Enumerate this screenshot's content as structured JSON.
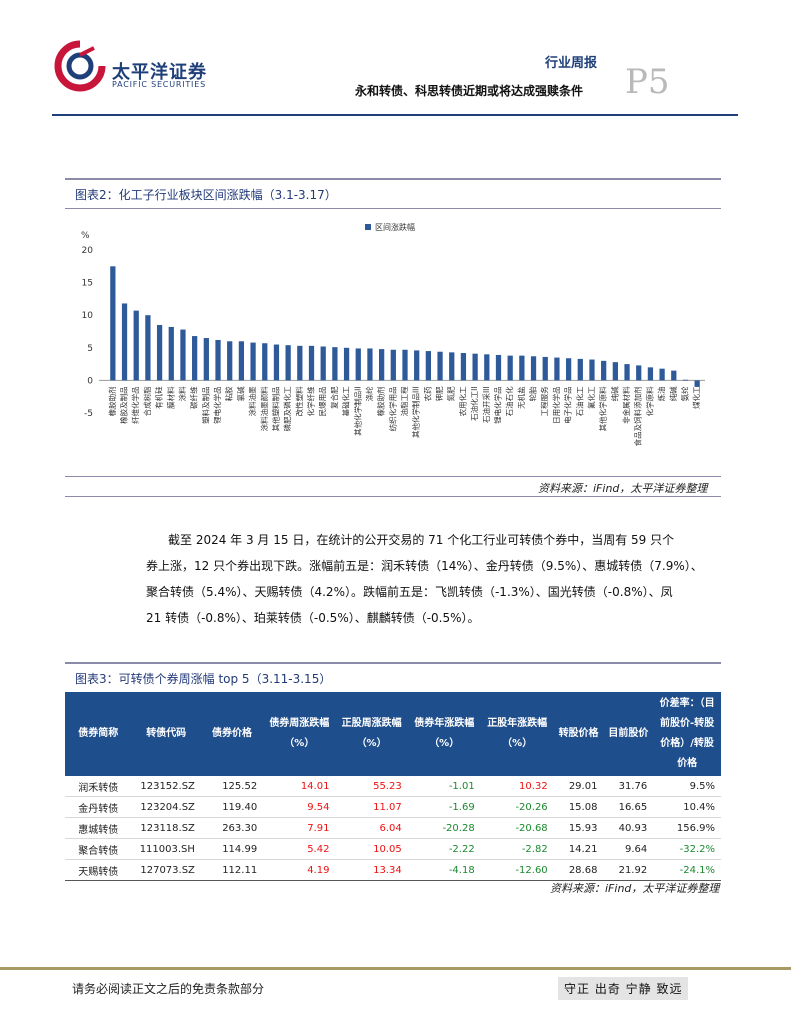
{
  "header": {
    "brand_cn": "太平洋证券",
    "brand_en": "PACIFIC SECURITIES",
    "report_type": "行业周报",
    "report_title": "永和转债、科思转债近期或将达成强赎条件",
    "page_number": "P5"
  },
  "figure2": {
    "title": "图表2：化工子行业板块区间涨跌幅（3.1-3.17）",
    "source": "资料来源：iFind，太平洋证券整理"
  },
  "chart_data": {
    "type": "bar",
    "title": "",
    "ylabel": "%",
    "xlabel": "",
    "ylim": [
      -5,
      20
    ],
    "yticks": [
      "20",
      "15",
      "10",
      "5",
      "0",
      "-5"
    ],
    "legend": "区间涨跌幅",
    "legend_position": "top-center",
    "bar_color": "#2e5a9a",
    "categories": [
      "橡胶助剂",
      "橡胶及制品",
      "纤维化学品",
      "合成树脂",
      "有机硅",
      "膜材料",
      "涂料",
      "碳纤维",
      "塑料及制品",
      "锂电化学品",
      "粘胶",
      "氯碱",
      "涂料油墨",
      "涂料油墨颜料",
      "其他塑料制品",
      "磷肥及磷化工",
      "改性塑料",
      "化学纤维",
      "民爆用品",
      "复合肥",
      "基础化工",
      "其他化学制品II",
      "涤纶",
      "橡胶助剂",
      "纺织化学用品",
      "油脂工程",
      "其他化学制品III",
      "农药",
      "钾肥",
      "氮肥",
      "农用化工",
      "石油化工II",
      "石油开采III",
      "锂电化学品",
      "石油石化",
      "无机盐",
      "轮胎",
      "工程服务",
      "日用化学品",
      "电子化学品",
      "石油化工",
      "氟化工",
      "其他化学原料",
      "纯碱",
      "非金属材料",
      "食品及饲料添加剂",
      "化学原料",
      "炼油",
      "纯碱",
      "氨纶",
      "煤化工"
    ],
    "values": [
      17.5,
      11.8,
      10.7,
      10.0,
      8.5,
      8.2,
      7.8,
      6.8,
      6.5,
      6.2,
      6.0,
      6.0,
      5.8,
      5.7,
      5.5,
      5.4,
      5.3,
      5.3,
      5.2,
      5.1,
      5.0,
      4.9,
      4.9,
      4.8,
      4.7,
      4.7,
      4.6,
      4.5,
      4.4,
      4.3,
      4.2,
      4.1,
      4.0,
      3.9,
      3.8,
      3.8,
      3.7,
      3.6,
      3.5,
      3.4,
      3.3,
      3.2,
      3.0,
      2.8,
      2.5,
      2.3,
      2.0,
      1.8,
      1.5,
      0.1,
      -1.0
    ]
  },
  "paragraph": {
    "lines": [
      "截至 2024 年 3 月 15 日，在统计的公开交易的 71 个化工行业可转债个券中，当周有 59 只个",
      "券上涨，12 只个券出现下跌。涨幅前五是：润禾转债（14%）、金丹转债（9.5%）、惠城转债（7.9%）、",
      "聚合转债（5.4%）、天赐转债（4.2%）。跌幅前五是：飞凯转债（-1.3%）、国光转债（-0.8%）、凤",
      "21 转债（-0.8%）、珀莱转债（-0.5%）、麒麟转债（-0.5%）。"
    ]
  },
  "figure3": {
    "title": "图表3：可转债个券周涨幅 top 5（3.11-3.15）",
    "source": "资料来源：iFind，太平洋证券整理",
    "columns": [
      "债券简称",
      "转债代码",
      "债券价格",
      "债券周涨跌幅（%）",
      "正股周涨跌幅（%）",
      "债券年涨跌幅（%）",
      "正股年涨跌幅（%）",
      "转股价格",
      "目前股价",
      "价差率：（目前股价-转股价格）/转股价格"
    ],
    "rows": [
      [
        "润禾转债",
        "123152.SZ",
        "125.52",
        "14.01",
        "55.23",
        "-1.01",
        "10.32",
        "29.01",
        "31.76",
        "9.5%"
      ],
      [
        "金丹转债",
        "123204.SZ",
        "119.40",
        "9.54",
        "11.07",
        "-1.69",
        "-20.26",
        "15.08",
        "16.65",
        "10.4%"
      ],
      [
        "惠城转债",
        "123118.SZ",
        "263.30",
        "7.91",
        "6.04",
        "-20.28",
        "-20.68",
        "15.93",
        "40.93",
        "156.9%"
      ],
      [
        "聚合转债",
        "111003.SH",
        "114.99",
        "5.42",
        "10.05",
        "-2.22",
        "-2.82",
        "14.21",
        "9.64",
        "-32.2%"
      ],
      [
        "天赐转债",
        "127073.SZ",
        "112.11",
        "4.19",
        "13.34",
        "-4.18",
        "-12.60",
        "28.68",
        "21.92",
        "-24.1%"
      ]
    ]
  },
  "footer": {
    "disclaimer": "请务必阅读正文之后的免责条款部分",
    "motto": "守正 出奇 宁静 致远"
  }
}
